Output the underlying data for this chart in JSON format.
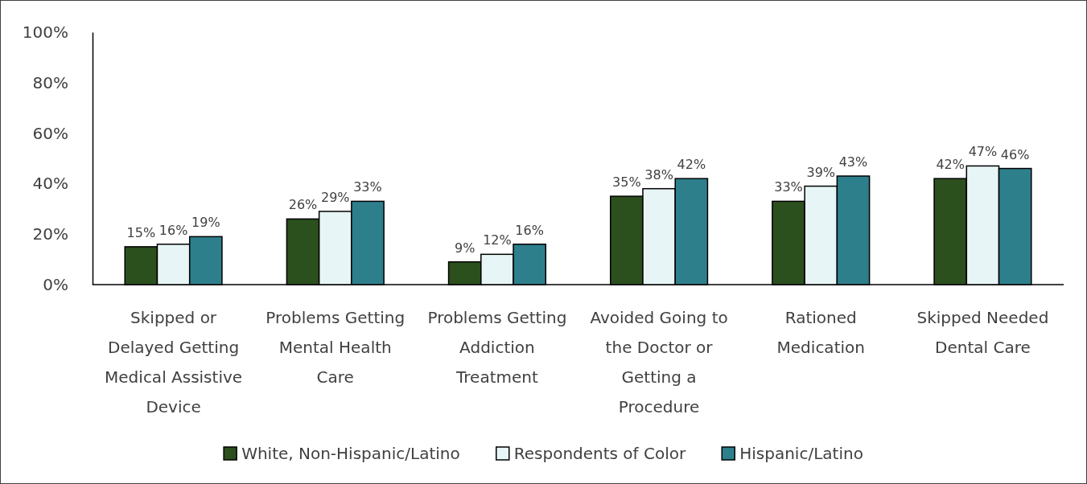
{
  "chart_data": {
    "type": "bar",
    "categories": [
      "Skipped or Delayed Getting Medical Assistive Device",
      "Problems Getting Mental Health Care",
      "Problems Getting Addiction Treatment",
      "Avoided Going to the Doctor or Getting a Procedure",
      "Rationed Medication",
      "Skipped Needed Dental Care"
    ],
    "series": [
      {
        "name": "White, Non-Hispanic/Latino",
        "color": "#2c4f1e",
        "values": [
          15,
          26,
          9,
          35,
          33,
          42
        ],
        "value_labels": [
          "15%",
          "26%",
          "9%",
          "35%",
          "33%",
          "42%"
        ]
      },
      {
        "name": "Respondents of Color",
        "color": "#e8f5f6",
        "values": [
          16,
          29,
          12,
          38,
          39,
          47
        ],
        "value_labels": [
          "16%",
          "29%",
          "12%",
          "38%",
          "39%",
          "47%"
        ]
      },
      {
        "name": "Hispanic/Latino",
        "color": "#2e7f8c",
        "values": [
          19,
          33,
          16,
          42,
          43,
          46
        ],
        "value_labels": [
          "19%",
          "33%",
          "16%",
          "42%",
          "43%",
          "46%"
        ]
      }
    ],
    "ylim": [
      0,
      100
    ],
    "yticks": [
      {
        "value": 0,
        "label": "0%"
      },
      {
        "value": 20,
        "label": "20%"
      },
      {
        "value": 40,
        "label": "40%"
      },
      {
        "value": 60,
        "label": "60%"
      },
      {
        "value": 80,
        "label": "80%"
      },
      {
        "value": 100,
        "label": "100%"
      }
    ],
    "grid": false,
    "legend": "bottom"
  }
}
